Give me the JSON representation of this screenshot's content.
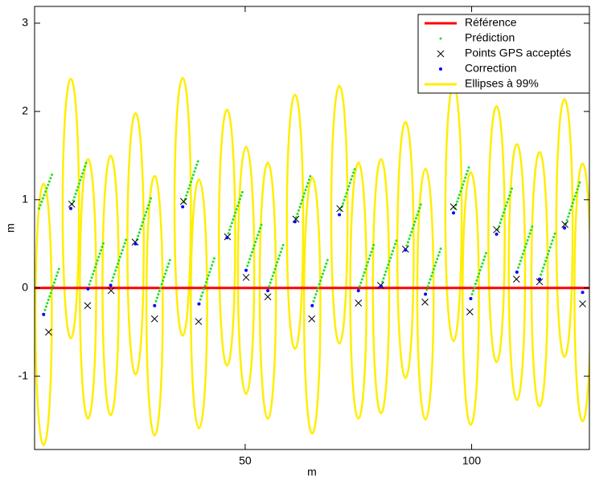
{
  "chart_data": {
    "type": "scatter",
    "xlabel": "m",
    "ylabel": "m",
    "xlim": [
      3.5,
      126
    ],
    "ylim": [
      -1.83,
      3.19
    ],
    "xticks": [
      50,
      100
    ],
    "yticks": [
      -1,
      0,
      1,
      2,
      3
    ],
    "legend_position": "upper right",
    "reference": {
      "name": "Référence",
      "color": "#ff0000",
      "x": [
        3.5,
        126
      ],
      "y": [
        0,
        0
      ]
    },
    "prediction": {
      "name": "Prédiction",
      "color": "#22e022",
      "x": [
        4.5,
        7.6,
        null,
        5.8,
        9.1,
        null,
        11.8,
        15.1,
        null,
        15.6,
        18.9,
        null,
        20.6,
        23.9,
        null,
        26.1,
        29.4,
        null,
        30.3,
        33.6,
        null,
        36.5,
        39.8,
        null,
        40.1,
        43.4,
        null,
        46.3,
        49.6,
        null,
        50.5,
        53.8,
        null,
        55.3,
        58.6,
        null,
        61.3,
        64.6,
        null,
        65.1,
        68.4,
        null,
        71.1,
        74.4,
        null,
        75.3,
        78.6,
        null,
        80.3,
        83.6,
        null,
        85.7,
        89,
        null,
        90.1,
        93.4,
        null,
        96.3,
        99.6,
        null,
        100.1,
        103.4,
        null,
        105.8,
        109.1,
        null,
        110.3,
        113.6,
        null,
        115.3,
        118.6,
        null,
        120.8,
        124.1
      ],
      "y": [
        0.9,
        1.32,
        null,
        -0.25,
        0.25,
        null,
        0.95,
        1.45,
        null,
        0.04,
        0.54,
        null,
        0.08,
        0.58,
        null,
        0.55,
        1.05,
        null,
        -0.15,
        0.35,
        null,
        0.97,
        1.47,
        null,
        -0.13,
        0.37,
        null,
        0.62,
        1.12,
        null,
        0.25,
        0.75,
        null,
        0.02,
        0.52,
        null,
        0.8,
        1.3,
        null,
        -0.15,
        0.35,
        null,
        0.88,
        1.38,
        null,
        0.02,
        0.52,
        null,
        0.07,
        0.57,
        null,
        0.48,
        0.98,
        null,
        -0.02,
        0.48,
        null,
        0.9,
        1.4,
        null,
        -0.07,
        0.43,
        null,
        0.66,
        1.16,
        null,
        0.23,
        0.73,
        null,
        0.15,
        0.65,
        null,
        0.73,
        1.23
      ]
    },
    "gps": {
      "name": "Points GPS acceptés",
      "color": "#000000",
      "x": [
        6.6,
        11.7,
        15.2,
        20.4,
        25.7,
        30,
        36.4,
        39.7,
        46.1,
        50.2,
        55,
        61.2,
        64.7,
        70.9,
        75,
        79.9,
        85.4,
        89.7,
        96,
        99.6,
        105.5,
        109.9,
        115,
        120.6,
        124.5
      ],
      "y": [
        -0.5,
        0.95,
        -0.2,
        -0.03,
        0.52,
        -0.35,
        0.98,
        -0.38,
        0.58,
        0.12,
        -0.1,
        0.78,
        -0.35,
        0.9,
        -0.17,
        0.03,
        0.44,
        -0.16,
        0.92,
        -0.27,
        0.66,
        0.1,
        0.07,
        0.72,
        -0.18
      ]
    },
    "correction": {
      "name": "Correction",
      "color": "#0000ff",
      "x": [
        5.5,
        11.5,
        15.3,
        20.3,
        25.8,
        30,
        36.2,
        39.8,
        46,
        50.2,
        55,
        61,
        64.8,
        70.8,
        75,
        80,
        85.4,
        89.8,
        96,
        99.8,
        105.5,
        110,
        115,
        120.5,
        124.5
      ],
      "y": [
        -0.3,
        0.9,
        -0.01,
        0.03,
        0.5,
        -0.2,
        0.92,
        -0.18,
        0.57,
        0.2,
        -0.03,
        0.75,
        -0.2,
        0.83,
        -0.03,
        0.02,
        0.43,
        -0.07,
        0.85,
        -0.12,
        0.61,
        0.18,
        0.1,
        0.68,
        -0.05
      ]
    },
    "ellipses": {
      "name": "Ellipses à 99%",
      "color": "#ffee00",
      "x": [
        5.5,
        11.5,
        15.3,
        20.3,
        25.8,
        30,
        36.2,
        39.8,
        46,
        50.2,
        55,
        61,
        64.8,
        70.8,
        75,
        80,
        85.4,
        89.8,
        96,
        99.8,
        105.5,
        110,
        115,
        120.5,
        124.5
      ],
      "y": [
        -0.3,
        0.9,
        -0.01,
        0.03,
        0.5,
        -0.2,
        0.92,
        -0.18,
        0.57,
        0.2,
        -0.03,
        0.75,
        -0.2,
        0.83,
        -0.03,
        0.02,
        0.43,
        -0.07,
        0.85,
        -0.12,
        0.61,
        0.18,
        0.1,
        0.68,
        -0.05
      ],
      "rx": [
        1.8,
        1.8,
        1.8,
        1.8,
        1.8,
        1.8,
        1.8,
        1.8,
        1.8,
        1.8,
        1.8,
        1.8,
        1.8,
        1.8,
        1.8,
        1.8,
        1.8,
        1.8,
        1.8,
        1.8,
        1.8,
        1.8,
        1.8,
        1.8,
        1.8
      ],
      "ry": [
        1.48,
        1.47,
        1.47,
        1.47,
        1.48,
        1.47,
        1.46,
        1.41,
        1.45,
        1.4,
        1.45,
        1.44,
        1.45,
        1.46,
        1.45,
        1.44,
        1.45,
        1.42,
        1.45,
        1.43,
        1.45,
        1.45,
        1.44,
        1.46,
        1.46
      ]
    }
  }
}
